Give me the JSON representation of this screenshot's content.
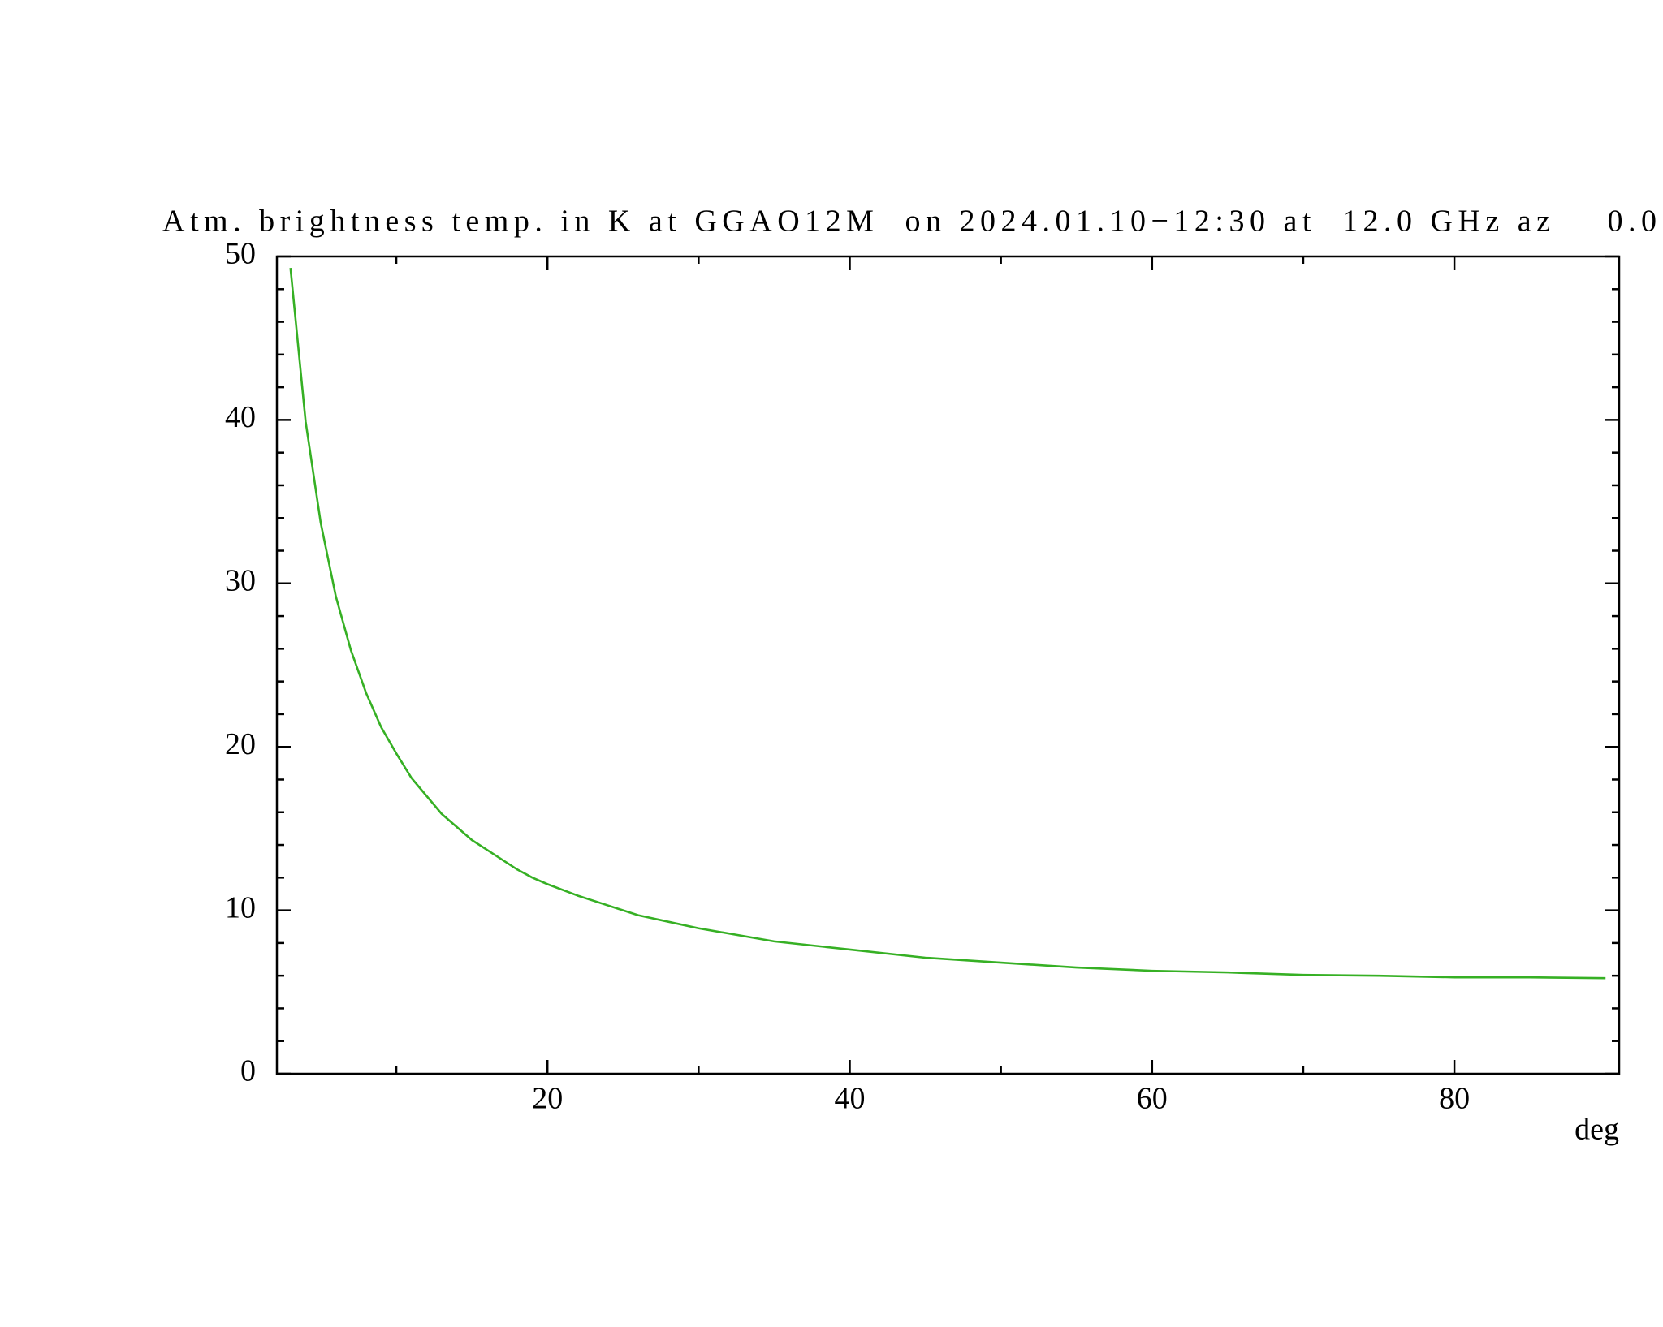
{
  "chart_data": {
    "type": "line",
    "title": "Atm. brightness temp. in K at GGAO12M  on 2024.01.10−12:30 at  12.0 GHz az    0.0",
    "xlabel": "deg",
    "x": [
      3,
      4,
      5,
      6,
      7,
      8,
      9,
      10,
      11,
      12,
      13,
      14,
      15,
      16,
      17,
      18,
      19,
      20,
      22,
      24,
      26,
      28,
      30,
      35,
      40,
      45,
      50,
      55,
      60,
      65,
      70,
      75,
      80,
      85,
      90
    ],
    "values": [
      49.3,
      39.9,
      33.7,
      29.2,
      25.9,
      23.3,
      21.2,
      19.6,
      18.1,
      17.0,
      15.9,
      15.1,
      14.3,
      13.7,
      13.1,
      12.5,
      12.0,
      11.6,
      10.9,
      10.3,
      9.7,
      9.3,
      8.9,
      8.1,
      7.6,
      7.1,
      6.8,
      6.5,
      6.3,
      6.2,
      6.05,
      6.0,
      5.9,
      5.9,
      5.85
    ],
    "color": "#36b024",
    "xlim": [
      2.1,
      90.9
    ],
    "xticks": [
      20,
      40,
      60,
      80
    ],
    "xminorticks": [
      10,
      30,
      50,
      70
    ],
    "ylim": [
      0,
      50
    ],
    "yticks": [
      0,
      10,
      20,
      30,
      40,
      50
    ],
    "yminorticks": [
      2,
      4,
      6,
      8,
      12,
      14,
      16,
      18,
      22,
      24,
      26,
      28,
      32,
      34,
      36,
      38,
      42,
      44,
      46,
      48
    ]
  }
}
